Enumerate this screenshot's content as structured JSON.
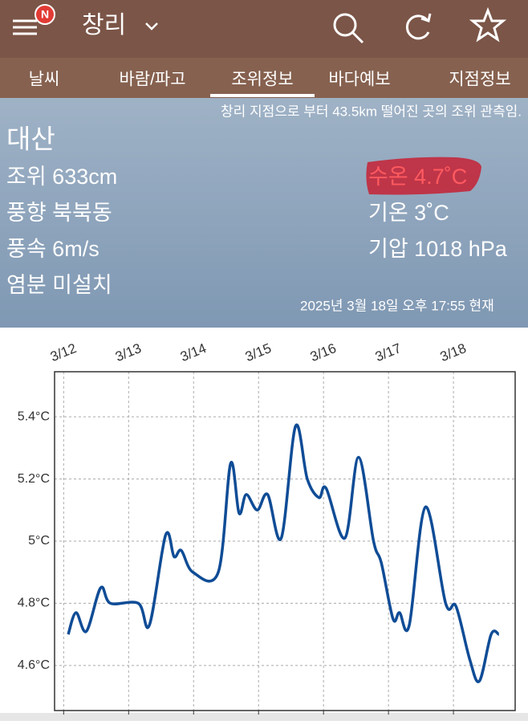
{
  "header": {
    "badge": "N",
    "title": "창리"
  },
  "tabs": [
    "날씨",
    "바람/파고",
    "조위정보",
    "바다예보",
    "지점정보"
  ],
  "info": {
    "note": "창리 지점으로 부터 43.5km 떨어진 곳의 조위 관측임.",
    "station": "대산",
    "left": [
      "조위 633cm",
      "풍향 북북동",
      "풍속 6m/s",
      "염분 미설치"
    ],
    "right": [
      "수온 4.7˚C",
      "기온 3˚C",
      "기압 1018 hPa"
    ],
    "timestamp": "2025년 3월 18일 오후 17:55 현재"
  },
  "chart_data": {
    "type": "line",
    "x": [
      12.07,
      12.19,
      12.35,
      12.57,
      12.72,
      13.15,
      13.32,
      13.57,
      13.7,
      13.81,
      13.99,
      14.38,
      14.57,
      14.7,
      14.81,
      14.98,
      15.14,
      15.35,
      15.57,
      15.75,
      15.93,
      16.04,
      16.33,
      16.54,
      16.77,
      16.89,
      17.07,
      17.17,
      17.32,
      17.57,
      17.88,
      18.04,
      18.25,
      18.4,
      18.58,
      18.7
    ],
    "values": [
      4.7,
      4.77,
      4.71,
      4.85,
      4.8,
      4.8,
      4.73,
      5.02,
      4.95,
      4.97,
      4.9,
      4.9,
      5.25,
      5.09,
      5.15,
      5.1,
      5.15,
      5.01,
      5.37,
      5.2,
      5.14,
      5.17,
      5.01,
      5.27,
      5.0,
      4.93,
      4.75,
      4.77,
      4.73,
      5.11,
      4.8,
      4.79,
      4.62,
      4.55,
      4.7,
      4.7
    ],
    "color": "#0f4c96",
    "xlim": [
      11.86,
      18.95
    ],
    "xticks": [
      {
        "value": 12,
        "label": "3/12"
      },
      {
        "value": 13,
        "label": "3/13"
      },
      {
        "value": 14,
        "label": "3/14"
      },
      {
        "value": 15,
        "label": "3/15"
      },
      {
        "value": 16,
        "label": "3/16"
      },
      {
        "value": 17,
        "label": "3/17"
      },
      {
        "value": 18,
        "label": "3/18"
      }
    ],
    "ylim": [
      4.455,
      5.545
    ],
    "yticks": [
      {
        "value": 4.6,
        "label": "4.6°C"
      },
      {
        "value": 4.8,
        "label": "4.8°C"
      },
      {
        "value": 5,
        "label": "5°C"
      },
      {
        "value": 5.2,
        "label": "5.2°C"
      },
      {
        "value": 5.4,
        "label": "5.4°C"
      }
    ],
    "grid": true
  }
}
